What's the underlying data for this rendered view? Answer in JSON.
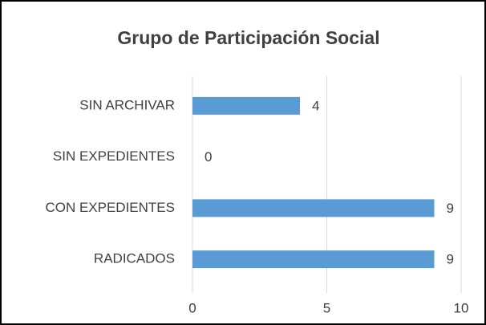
{
  "chart_data": {
    "type": "barh",
    "title": "Grupo de Participación Social",
    "categories": [
      "SIN ARCHIVAR",
      "SIN EXPEDIENTES",
      "CON EXPEDIENTES",
      "RADICADOS"
    ],
    "values": [
      4,
      0,
      9,
      9
    ],
    "color": "#5b9bd5",
    "xlim": [
      0,
      10
    ],
    "xticks": [
      0,
      5,
      10
    ],
    "grid": true
  }
}
